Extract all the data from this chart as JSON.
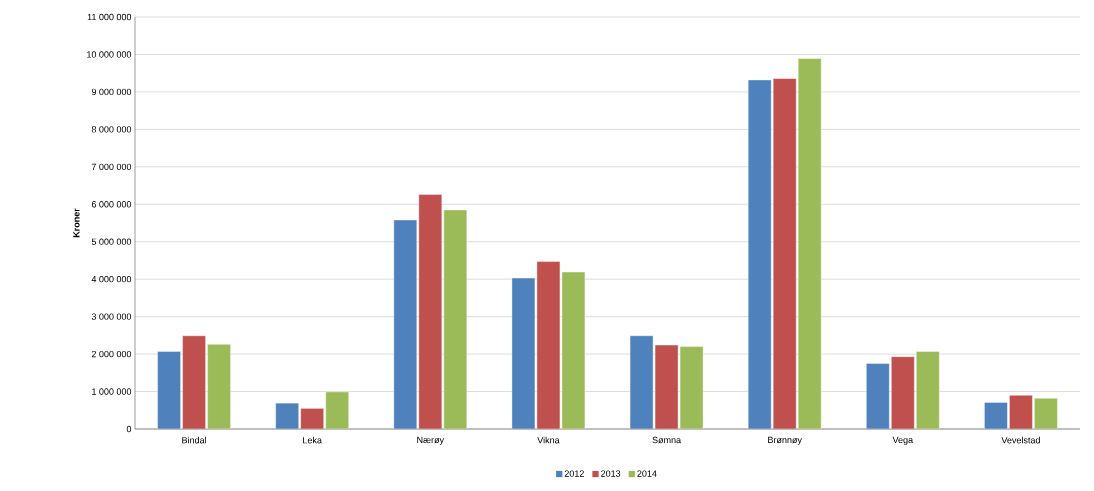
{
  "chart_data": {
    "type": "bar",
    "ylabel": "Kroner",
    "categories": [
      "Bindal",
      "Leka",
      "Nærøy",
      "Vikna",
      "Sømna",
      "Brønnøy",
      "Vega",
      "Vevelstad"
    ],
    "series": [
      {
        "name": "2012",
        "color": "#4f81bd",
        "values": [
          2070000,
          690000,
          5580000,
          4030000,
          2490000,
          9320000,
          1750000,
          710000
        ]
      },
      {
        "name": "2013",
        "color": "#c0504d",
        "values": [
          2490000,
          550000,
          6260000,
          4470000,
          2240000,
          9360000,
          1930000,
          900000
        ]
      },
      {
        "name": "2014",
        "color": "#9bbb59",
        "values": [
          2260000,
          990000,
          5850000,
          4190000,
          2200000,
          9890000,
          2070000,
          820000
        ]
      }
    ],
    "ylim": [
      0,
      11000000
    ],
    "yticks": [
      0,
      {
        "value": 1000000,
        "label": "1 000 000"
      },
      {
        "value": 2000000,
        "label": "2 000 000"
      },
      {
        "value": 3000000,
        "label": "3 000 000"
      },
      {
        "value": 4000000,
        "label": "4 000 000"
      },
      {
        "value": 5000000,
        "label": "5 000 000"
      },
      {
        "value": 6000000,
        "label": "6 000 000"
      },
      {
        "value": 7000000,
        "label": "7 000 000"
      },
      {
        "value": 8000000,
        "label": "8 000 000"
      },
      {
        "value": 9000000,
        "label": "9 000 000"
      },
      {
        "value": 10000000,
        "label": "10 000 000"
      },
      {
        "value": 11000000,
        "label": "11 000 000"
      }
    ],
    "grid": "y",
    "legend": "bottom"
  }
}
